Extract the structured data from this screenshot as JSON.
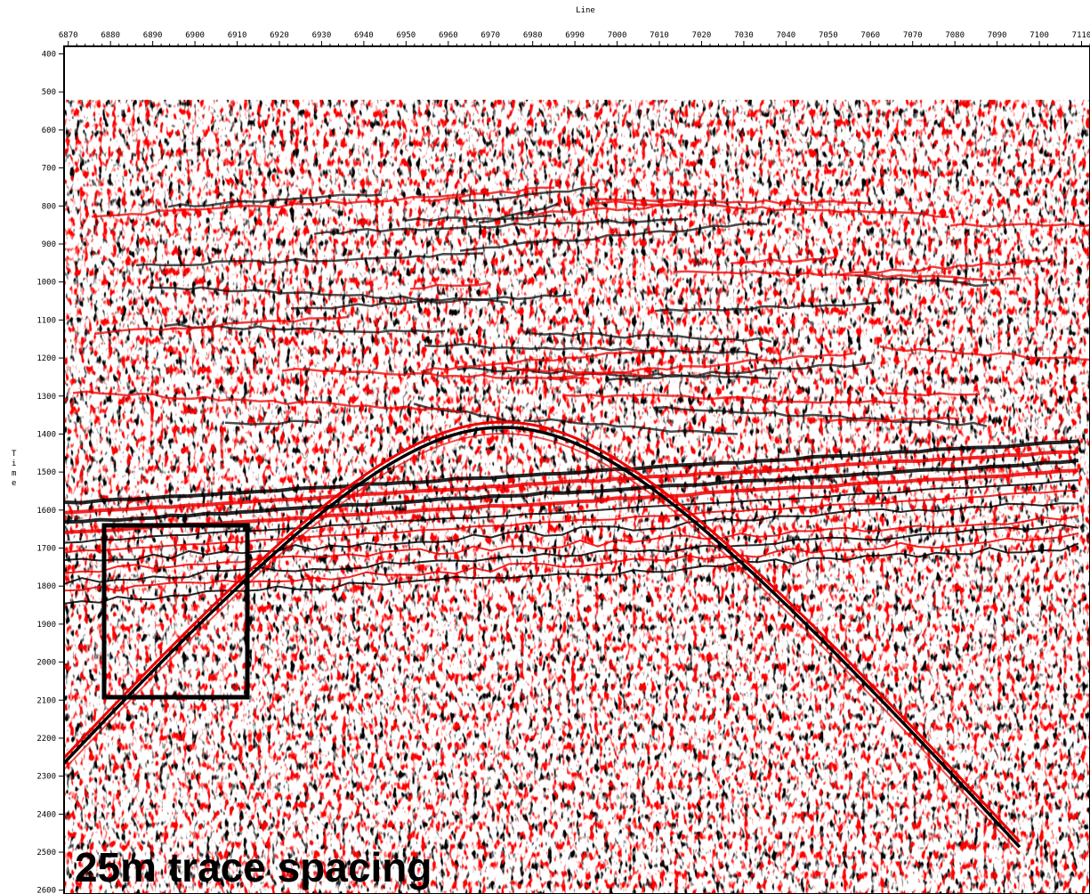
{
  "chart_data": {
    "type": "seismic",
    "title": "Line",
    "y_label": "Time",
    "annotation": "25m trace spacing",
    "xlim": [
      6869,
      7112
    ],
    "xticks": [
      6870,
      6880,
      6890,
      6900,
      6910,
      6920,
      6930,
      6940,
      6950,
      6960,
      6970,
      6980,
      6990,
      7000,
      7010,
      7020,
      7030,
      7040,
      7050,
      7060,
      7070,
      7080,
      7090,
      7100,
      7110
    ],
    "ylim": [
      380,
      2610
    ],
    "y_reversed": true,
    "yticks": [
      400,
      500,
      600,
      700,
      800,
      900,
      1000,
      1100,
      1200,
      1300,
      1400,
      1500,
      1600,
      1700,
      1800,
      1900,
      2000,
      2100,
      2200,
      2300,
      2400,
      2500,
      2600
    ]
  }
}
